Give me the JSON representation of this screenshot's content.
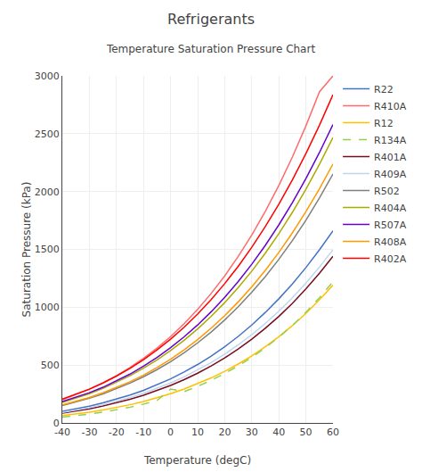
{
  "chart_data": {
    "type": "line",
    "title": "Refrigerants",
    "subtitle": "Temperature Saturation Pressure Chart",
    "xlabel": "Temperature (degC)",
    "ylabel": "Saturation Pressure (kPa)",
    "x": [
      -40,
      -35,
      -30,
      -25,
      -20,
      -15,
      -10,
      -5,
      0,
      5,
      10,
      15,
      20,
      25,
      30,
      35,
      40,
      45,
      50,
      55,
      60
    ],
    "xlim": [
      -40,
      60
    ],
    "ylim": [
      0,
      3000
    ],
    "xticks": [
      -40,
      -30,
      -20,
      -10,
      0,
      10,
      20,
      30,
      40,
      50,
      60
    ],
    "yticks": [
      0,
      500,
      1000,
      1500,
      2000,
      2500,
      3000
    ],
    "grid": true,
    "legend": "right",
    "series": [
      {
        "name": "R22",
        "color": "#4472C4",
        "line_style": "solid",
        "values": [
          101,
          122,
          145,
          173,
          205,
          241,
          282,
          329,
          381,
          440,
          505,
          578,
          659,
          748,
          846,
          955,
          1073,
          1202,
          1343,
          1496,
          1661
        ]
      },
      {
        "name": "R410A",
        "color": "#FF6B6B",
        "line_style": "solid",
        "values": [
          201,
          243,
          291,
          346,
          408,
          479,
          558,
          647,
          746,
          858,
          982,
          1119,
          1271,
          1439,
          1624,
          1828,
          2052,
          2298,
          2567,
          2862,
          3000
        ]
      },
      {
        "name": "R12",
        "color": "#FFC000",
        "line_style": "solid",
        "values": [
          64,
          78,
          93,
          112,
          133,
          157,
          185,
          216,
          252,
          293,
          338,
          389,
          446,
          509,
          580,
          658,
          745,
          841,
          947,
          1064,
          1191
        ]
      },
      {
        "name": "R134A",
        "color": "#92D050",
        "line_style": "dashed",
        "values": [
          51,
          63,
          77,
          93,
          113,
          136,
          163,
          194,
          293,
          270,
          316,
          368,
          427,
          493,
          567,
          650,
          741,
          843,
          956,
          1082,
          1220
        ]
      },
      {
        "name": "R401A",
        "color": "#7B0C1E",
        "line_style": "solid",
        "values": [
          84,
          102,
          122,
          146,
          173,
          204,
          239,
          279,
          324,
          374,
          430,
          493,
          562,
          639,
          724,
          818,
          921,
          1034,
          1158,
          1293,
          1440
        ]
      },
      {
        "name": "R409A",
        "color": "#BDD7EE",
        "line_style": "solid",
        "values": [
          91,
          110,
          132,
          157,
          186,
          219,
          256,
          298,
          345,
          398,
          457,
          522,
          595,
          675,
          763,
          860,
          966,
          1082,
          1209,
          1347,
          1497
        ]
      },
      {
        "name": "R502",
        "color": "#7F7F7F",
        "line_style": "solid",
        "values": [
          150,
          179,
          213,
          251,
          295,
          344,
          399,
          461,
          530,
          607,
          692,
          786,
          890,
          1004,
          1129,
          1265,
          1414,
          1576,
          1752,
          1944,
          2151
        ]
      },
      {
        "name": "R404A",
        "color": "#AAAA00",
        "line_style": "solid",
        "values": [
          178,
          213,
          253,
          298,
          350,
          408,
          473,
          545,
          626,
          715,
          813,
          921,
          1040,
          1170,
          1312,
          1467,
          1636,
          1820,
          2019,
          2235,
          2468
        ]
      },
      {
        "name": "R507A",
        "color": "#6600CC",
        "line_style": "solid",
        "values": [
          184,
          220,
          261,
          308,
          362,
          422,
          490,
          566,
          651,
          744,
          847,
          961,
          1086,
          1223,
          1372,
          1535,
          1712,
          1904,
          2112,
          2337,
          2580
        ]
      },
      {
        "name": "R408A",
        "color": "#FF9900",
        "line_style": "solid",
        "values": [
          155,
          185,
          220,
          260,
          305,
          356,
          414,
          479,
          551,
          631,
          720,
          819,
          927,
          1046,
          1176,
          1319,
          1474,
          1643,
          1826,
          2024,
          2238
        ]
      },
      {
        "name": "R402A",
        "color": "#FF0000",
        "line_style": "solid",
        "values": [
          205,
          246,
          292,
          345,
          405,
          472,
          547,
          631,
          724,
          827,
          941,
          1066,
          1204,
          1354,
          1518,
          1697,
          1891,
          2101,
          2328,
          2573,
          2837
        ]
      }
    ]
  }
}
